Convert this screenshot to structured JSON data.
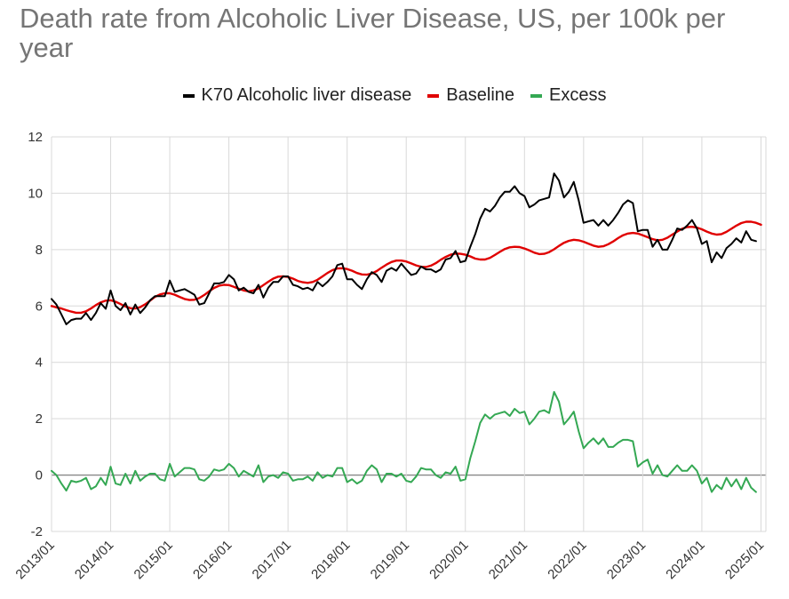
{
  "chart_data": {
    "type": "line",
    "title": "Death rate from Alcoholic Liver Disease, US, per 100k per year",
    "xlabel": "",
    "ylabel": "",
    "ylim": [
      -2,
      12
    ],
    "yticks": [
      "12",
      "10",
      "8",
      "6",
      "4",
      "2",
      "0",
      "-2"
    ],
    "xticks": [
      "2013/01",
      "2014/01",
      "2015/01",
      "2016/01",
      "2017/01",
      "2018/01",
      "2019/01",
      "2020/01",
      "2021/01",
      "2022/01",
      "2023/01",
      "2024/01",
      "2025/01"
    ],
    "x_range": [
      "2013/01",
      "2025/02"
    ],
    "legend_position": "top-center",
    "grid": true,
    "series": [
      {
        "name": "K70 Alcoholic liver disease",
        "color": "#000000",
        "start": "2013/01",
        "step": "monthly",
        "values": [
          6.25,
          6.05,
          5.7,
          5.35,
          5.5,
          5.55,
          5.55,
          5.75,
          5.5,
          5.75,
          6.1,
          5.9,
          6.55,
          6.0,
          5.85,
          6.1,
          5.7,
          6.05,
          5.75,
          5.95,
          6.2,
          6.35,
          6.35,
          6.35,
          6.9,
          6.5,
          6.55,
          6.6,
          6.5,
          6.4,
          6.05,
          6.1,
          6.45,
          6.8,
          6.8,
          6.85,
          7.1,
          6.95,
          6.55,
          6.65,
          6.5,
          6.45,
          6.75,
          6.3,
          6.65,
          6.85,
          6.85,
          7.05,
          7.05,
          6.75,
          6.7,
          6.6,
          6.65,
          6.55,
          6.85,
          6.7,
          6.85,
          7.05,
          7.45,
          7.5,
          6.95,
          6.95,
          6.75,
          6.6,
          6.95,
          7.2,
          7.1,
          6.85,
          7.25,
          7.35,
          7.25,
          7.5,
          7.3,
          7.1,
          7.15,
          7.4,
          7.3,
          7.3,
          7.2,
          7.3,
          7.65,
          7.7,
          7.95,
          7.55,
          7.6,
          8.1,
          8.55,
          9.1,
          9.45,
          9.35,
          9.55,
          9.85,
          10.05,
          10.05,
          10.25,
          10.0,
          9.9,
          9.5,
          9.6,
          9.75,
          9.8,
          9.85,
          10.7,
          10.45,
          9.85,
          10.05,
          10.4,
          9.75,
          8.95,
          9.0,
          9.05,
          8.85,
          9.05,
          8.85,
          9.05,
          9.3,
          9.6,
          9.75,
          9.65,
          8.65,
          8.7,
          8.7,
          8.1,
          8.35,
          8.0,
          8.0,
          8.35,
          8.75,
          8.7,
          8.85,
          9.05,
          8.75,
          8.2,
          8.3,
          7.55,
          7.9,
          7.7,
          8.05,
          8.2,
          8.4,
          8.25,
          8.65,
          8.35,
          8.3
        ]
      },
      {
        "name": "Baseline",
        "color": "#e00000",
        "start": "2013/01",
        "step": "monthly",
        "values": [
          6.0,
          5.95,
          5.91,
          5.85,
          5.8,
          5.76,
          5.76,
          5.81,
          5.91,
          6.03,
          6.13,
          6.19,
          6.2,
          6.15,
          6.07,
          5.98,
          5.92,
          5.91,
          5.96,
          6.06,
          6.19,
          6.32,
          6.41,
          6.45,
          6.45,
          6.4,
          6.32,
          6.25,
          6.21,
          6.22,
          6.28,
          6.39,
          6.52,
          6.64,
          6.72,
          6.75,
          6.74,
          6.68,
          6.61,
          6.55,
          6.52,
          6.55,
          6.62,
          6.74,
          6.86,
          6.97,
          7.04,
          7.05,
          7.03,
          6.97,
          6.89,
          6.84,
          6.82,
          6.85,
          6.93,
          7.05,
          7.17,
          7.27,
          7.33,
          7.34,
          7.31,
          7.25,
          7.17,
          7.12,
          7.11,
          7.15,
          7.24,
          7.36,
          7.47,
          7.56,
          7.61,
          7.61,
          7.58,
          7.51,
          7.44,
          7.39,
          7.38,
          7.43,
          7.52,
          7.64,
          7.74,
          7.82,
          7.86,
          7.85,
          7.82,
          7.76,
          7.68,
          7.65,
          7.65,
          7.71,
          7.81,
          7.92,
          8.02,
          8.08,
          8.1,
          8.09,
          8.04,
          7.97,
          7.89,
          7.84,
          7.85,
          7.91,
          8.01,
          8.13,
          8.24,
          8.31,
          8.35,
          8.33,
          8.28,
          8.21,
          8.14,
          8.1,
          8.12,
          8.19,
          8.29,
          8.41,
          8.51,
          8.57,
          8.59,
          8.57,
          8.51,
          8.44,
          8.37,
          8.33,
          8.35,
          8.42,
          8.53,
          8.64,
          8.74,
          8.8,
          8.81,
          8.78,
          8.72,
          8.64,
          8.57,
          8.53,
          8.55,
          8.63,
          8.74,
          8.85,
          8.94,
          8.99,
          8.99,
          8.95,
          8.88
        ]
      },
      {
        "name": "Excess",
        "color": "#34a853",
        "start": "2013/01",
        "step": "monthly",
        "values": [
          0.15,
          0.0,
          -0.3,
          -0.55,
          -0.2,
          -0.25,
          -0.2,
          -0.1,
          -0.5,
          -0.4,
          -0.1,
          -0.35,
          0.3,
          -0.3,
          -0.35,
          0.05,
          -0.3,
          0.15,
          -0.2,
          -0.05,
          0.05,
          0.05,
          -0.15,
          -0.2,
          0.4,
          -0.05,
          0.1,
          0.25,
          0.25,
          0.2,
          -0.15,
          -0.2,
          -0.05,
          0.2,
          0.15,
          0.2,
          0.4,
          0.25,
          -0.05,
          0.15,
          0.05,
          -0.05,
          0.35,
          -0.25,
          -0.05,
          0.0,
          -0.1,
          0.1,
          0.05,
          -0.2,
          -0.15,
          -0.15,
          -0.05,
          -0.2,
          0.1,
          -0.1,
          0.0,
          -0.05,
          0.25,
          0.25,
          -0.25,
          -0.15,
          -0.3,
          -0.2,
          0.15,
          0.35,
          0.2,
          -0.25,
          0.05,
          0.05,
          -0.05,
          0.05,
          -0.2,
          -0.25,
          -0.05,
          0.25,
          0.2,
          0.2,
          0.0,
          -0.1,
          0.1,
          0.05,
          0.3,
          -0.2,
          -0.15,
          0.6,
          1.2,
          1.85,
          2.15,
          2.0,
          2.15,
          2.2,
          2.25,
          2.1,
          2.35,
          2.2,
          2.25,
          1.8,
          2.0,
          2.25,
          2.3,
          2.2,
          2.95,
          2.6,
          1.8,
          2.0,
          2.25,
          1.55,
          0.95,
          1.15,
          1.3,
          1.1,
          1.3,
          1.0,
          1.0,
          1.15,
          1.25,
          1.25,
          1.2,
          0.3,
          0.45,
          0.55,
          0.05,
          0.35,
          0.0,
          -0.05,
          0.15,
          0.35,
          0.15,
          0.15,
          0.35,
          0.15,
          -0.3,
          -0.1,
          -0.6,
          -0.35,
          -0.5,
          -0.1,
          -0.4,
          -0.15,
          -0.5,
          -0.1,
          -0.45,
          -0.6
        ]
      }
    ]
  }
}
